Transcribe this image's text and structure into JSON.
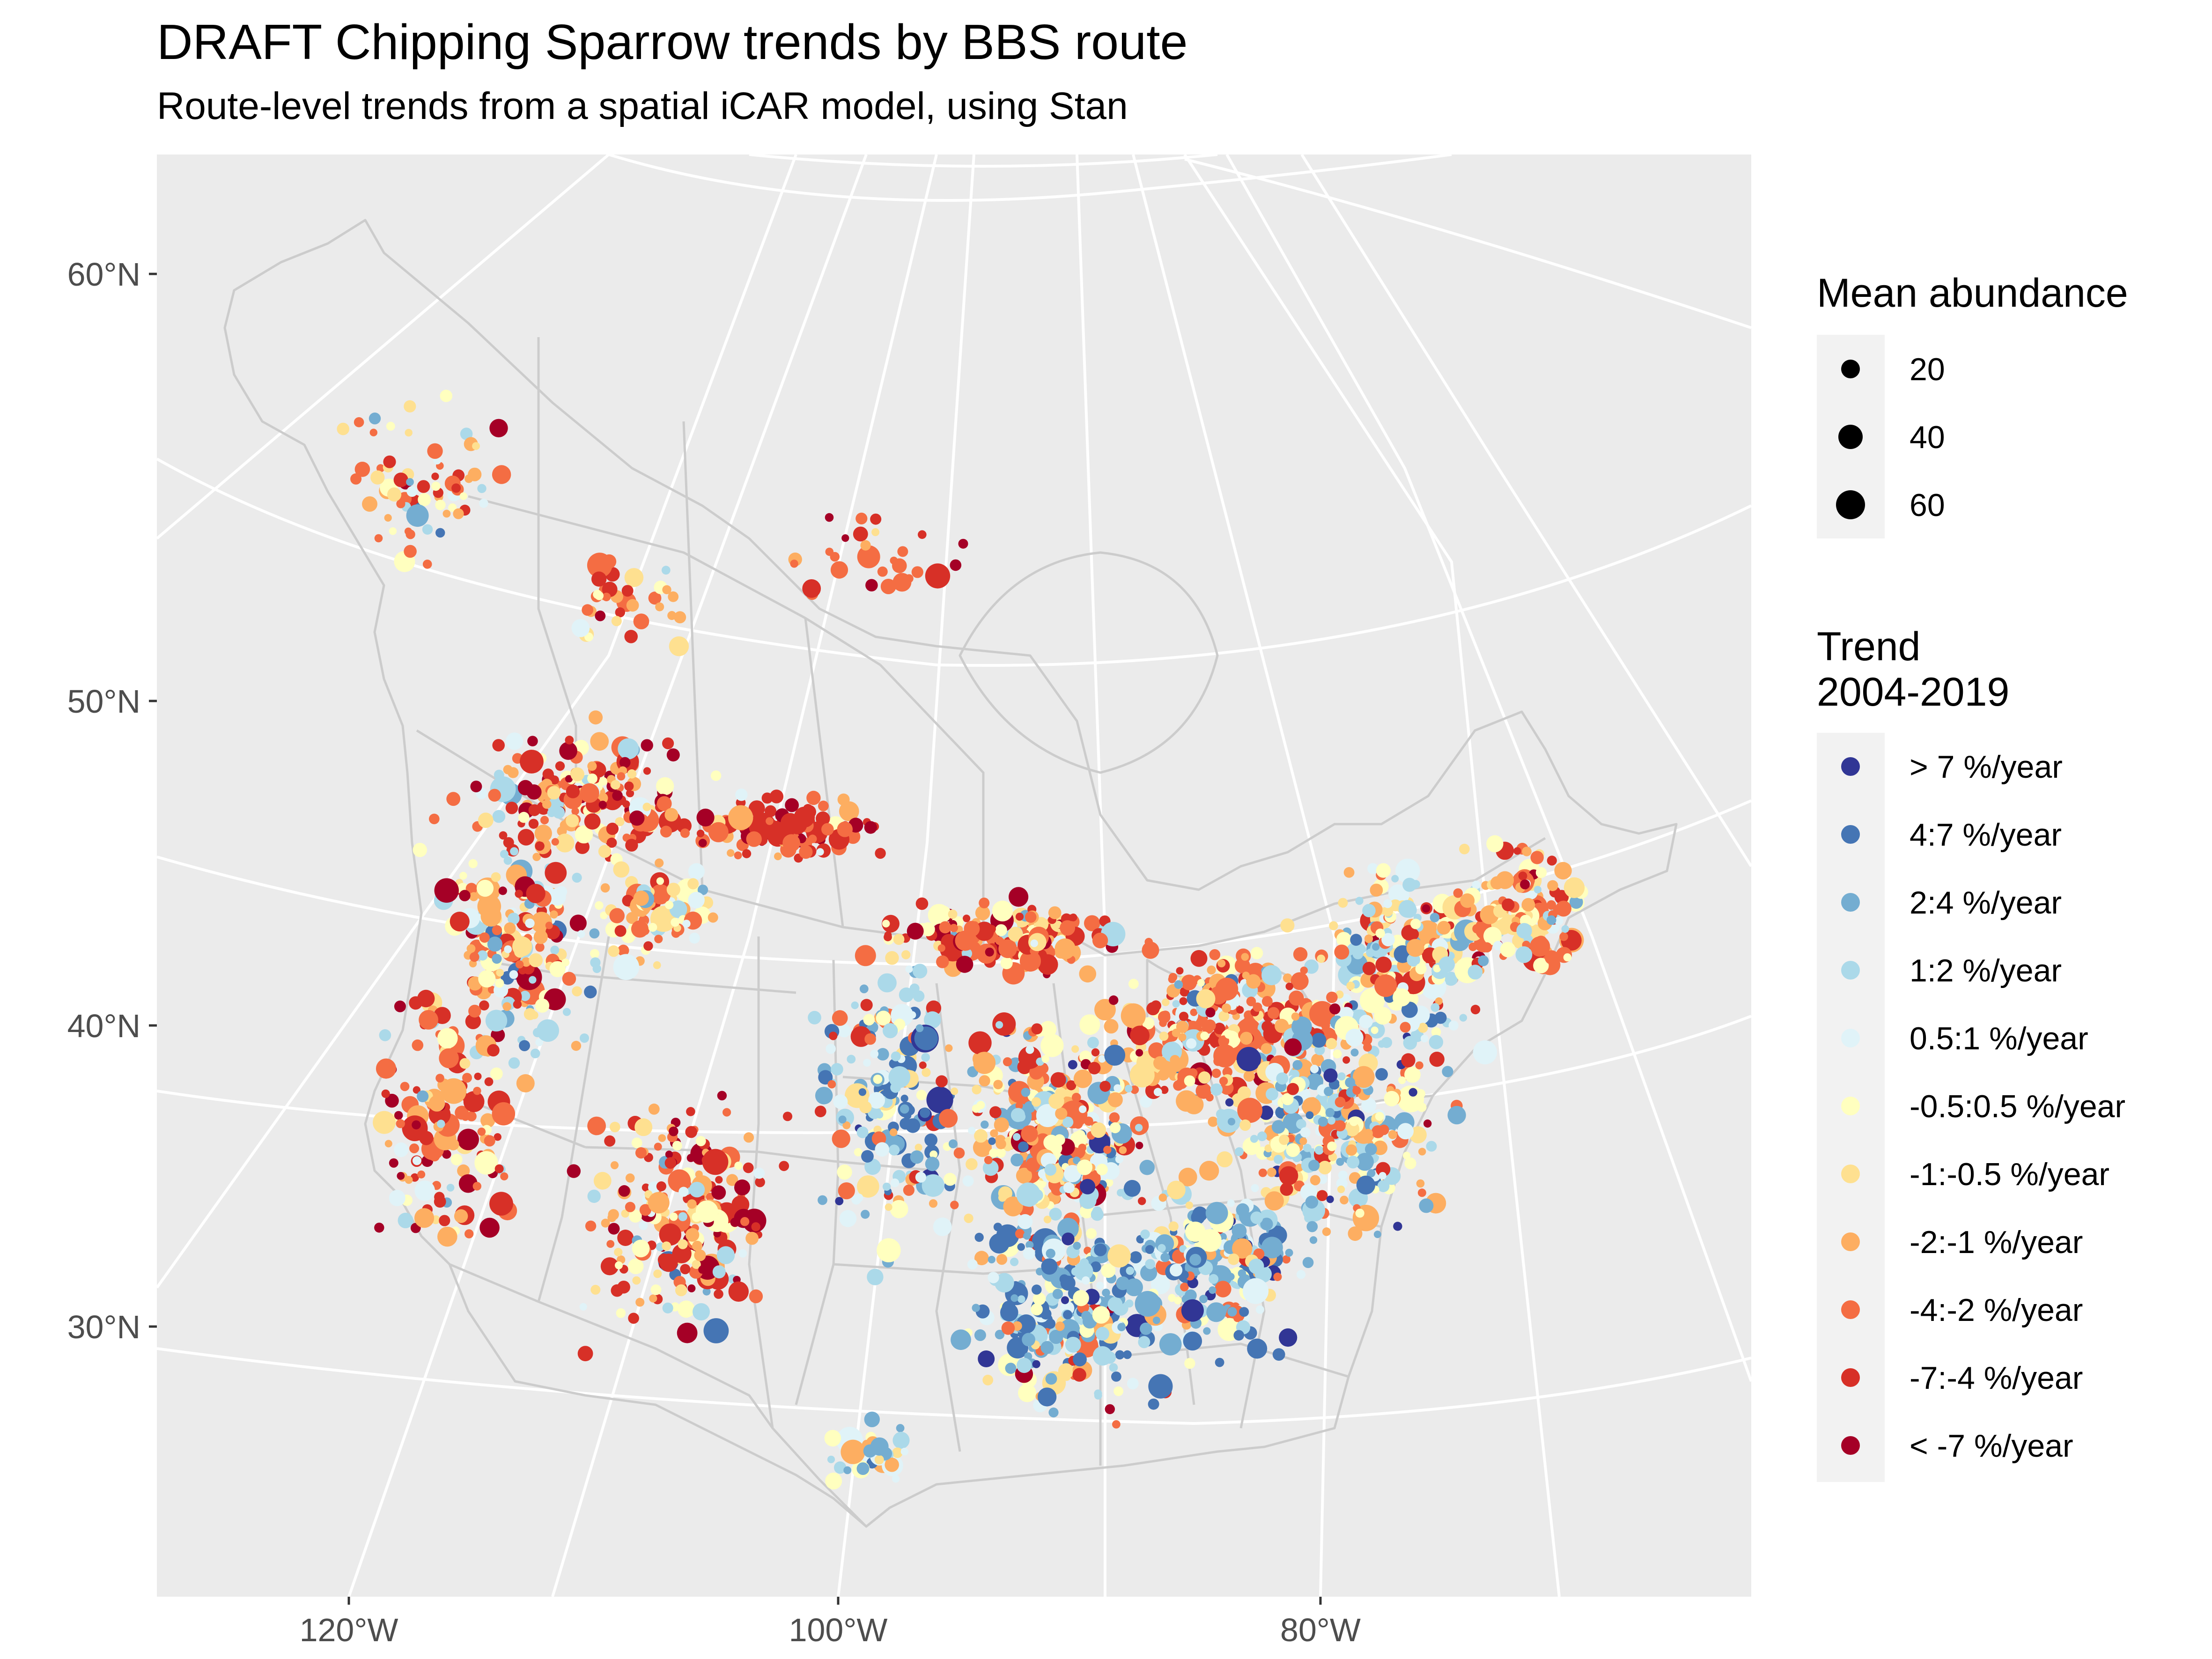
{
  "title": "DRAFT  Chipping Sparrow trends by BBS route",
  "subtitle": "Route-level trends from a spatial iCAR model, using Stan",
  "colors": {
    "panel_bg": "#ebebeb",
    "grid": "#ffffff",
    "borders": "#cccccc"
  },
  "chart_data": {
    "type": "map-scatter",
    "title": "DRAFT  Chipping Sparrow trends by BBS route",
    "subtitle": "Route-level trends from a spatial iCAR model, using Stan",
    "y_ticks": [
      {
        "label": "60°N"
      },
      {
        "label": "50°N"
      },
      {
        "label": "40°N"
      },
      {
        "label": "30°N"
      }
    ],
    "x_ticks": [
      {
        "label": "120°W"
      },
      {
        "label": "100°W"
      },
      {
        "label": "80°W"
      }
    ],
    "size_legend": {
      "title": "Mean abundance",
      "entries": [
        {
          "label": "20",
          "value": 20
        },
        {
          "label": "40",
          "value": 40
        },
        {
          "label": "60",
          "value": 60
        }
      ]
    },
    "color_legend": {
      "title_line1": "Trend",
      "title_line2": "2004-2019",
      "entries": [
        {
          "label": "> 7 %/year",
          "color": "#313695"
        },
        {
          "label": "4:7 %/year",
          "color": "#4575b4"
        },
        {
          "label": "2:4 %/year",
          "color": "#74add1"
        },
        {
          "label": "1:2 %/year",
          "color": "#abd9e9"
        },
        {
          "label": "0.5:1 %/year",
          "color": "#e0f3f8"
        },
        {
          "label": "-0.5:0.5 %/year",
          "color": "#ffffbf"
        },
        {
          "label": "-1:-0.5 %/year",
          "color": "#fee090"
        },
        {
          "label": "-2:-1 %/year",
          "color": "#fdae61"
        },
        {
          "label": "-4:-2 %/year",
          "color": "#f46d43"
        },
        {
          "label": "-7:-4 %/year",
          "color": "#d73027"
        },
        {
          "label": "< -7 %/year",
          "color": "#a50026"
        }
      ]
    }
  }
}
